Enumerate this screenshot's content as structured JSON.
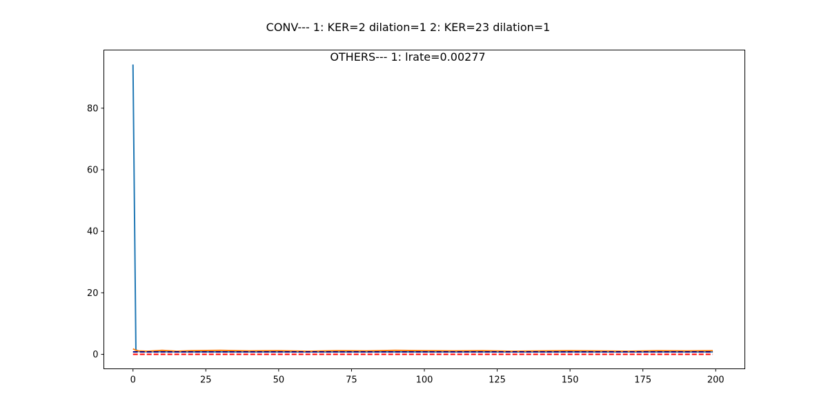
{
  "figure": {
    "suptitle": "CONV--- 1: KER=2   dilation=1   2: KER=23   dilation=1"
  },
  "chart_data": {
    "type": "line",
    "title": "OTHERS--- 1: lrate=0.00277",
    "xlabel": "",
    "ylabel": "",
    "xlim": [
      -10,
      210
    ],
    "ylim": [
      -4.7,
      98.9
    ],
    "xticks": [
      0,
      25,
      50,
      75,
      100,
      125,
      150,
      175,
      200
    ],
    "yticks": [
      0,
      20,
      40,
      60,
      80
    ],
    "grid": false,
    "legend": "none",
    "series": [
      {
        "color": "#1f77b4",
        "style": "solid",
        "x": [
          0,
          1,
          2,
          5,
          10,
          20,
          50,
          100,
          150,
          199
        ],
        "y": [
          94.2,
          1.5,
          0.9,
          0.85,
          0.85,
          0.8,
          0.8,
          0.8,
          0.8,
          0.8
        ]
      },
      {
        "color": "#ff7f0e",
        "style": "solid",
        "x": [
          0,
          1,
          2,
          5,
          10,
          15,
          20,
          30,
          40,
          50,
          60,
          70,
          80,
          90,
          100,
          110,
          120,
          130,
          140,
          150,
          160,
          170,
          180,
          190,
          199
        ],
        "y": [
          1.8,
          1.3,
          1.1,
          1.0,
          1.3,
          1.0,
          1.2,
          1.3,
          1.1,
          1.2,
          1.0,
          1.2,
          1.1,
          1.3,
          1.2,
          1.1,
          1.2,
          1.0,
          1.1,
          1.2,
          1.1,
          1.0,
          1.2,
          1.1,
          1.2
        ]
      },
      {
        "color": "#000080",
        "style": "dashed",
        "x": [
          0,
          199
        ],
        "y": [
          0.8,
          0.8
        ]
      },
      {
        "color": "#ff0000",
        "style": "dashed",
        "x": [
          0,
          199
        ],
        "y": [
          0.0,
          0.0
        ]
      }
    ]
  }
}
